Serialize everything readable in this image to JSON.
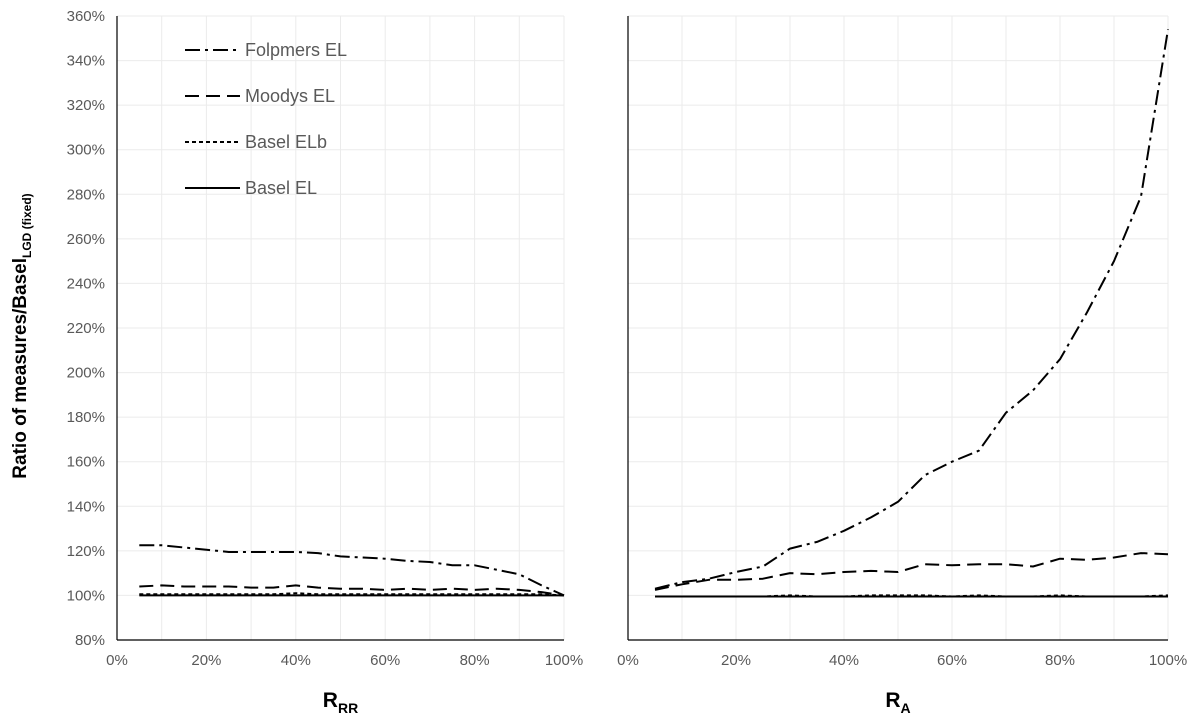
{
  "y_axis_title": {
    "main": "Ratio of measures/Basel",
    "subscript": "LGD (fixed)"
  },
  "chart_data": [
    {
      "type": "line",
      "xlabel": {
        "main": "R",
        "subscript": "RR"
      },
      "xlim": [
        0,
        100
      ],
      "ylim": [
        80,
        360
      ],
      "x_ticks": [
        0,
        20,
        40,
        60,
        80,
        100
      ],
      "x_tick_labels": [
        "0%",
        "20%",
        "40%",
        "60%",
        "80%",
        "100%"
      ],
      "y_ticks": [
        80,
        100,
        120,
        140,
        160,
        180,
        200,
        220,
        240,
        260,
        280,
        300,
        320,
        340,
        360
      ],
      "y_tick_labels": [
        "80%",
        "100%",
        "120%",
        "140%",
        "160%",
        "180%",
        "200%",
        "220%",
        "240%",
        "260%",
        "280%",
        "300%",
        "320%",
        "340%",
        "360%"
      ],
      "grid": true,
      "legend_position": "top-left",
      "x": [
        5,
        10,
        15,
        20,
        25,
        30,
        35,
        40,
        45,
        50,
        55,
        60,
        65,
        70,
        75,
        80,
        85,
        90,
        95,
        100
      ],
      "series": [
        {
          "name": "Folpmers EL",
          "dash": "dash-dot",
          "values": [
            122.5,
            122.5,
            121.5,
            120.5,
            119.5,
            119.5,
            119.5,
            119.5,
            119,
            117.5,
            117,
            116.5,
            115.5,
            115,
            113.5,
            113.5,
            111.5,
            109.5,
            104.5,
            100
          ]
        },
        {
          "name": "Moodys EL",
          "dash": "long-dash",
          "values": [
            104,
            104.5,
            104,
            104,
            104,
            103.5,
            103.5,
            104.5,
            103.5,
            103,
            103,
            102.5,
            103,
            102.5,
            103,
            102.5,
            103,
            102.5,
            101.5,
            100
          ]
        },
        {
          "name": "Basel ELb",
          "dash": "short-dash",
          "values": [
            100.5,
            100.5,
            100.5,
            100.5,
            100.5,
            100.5,
            100.5,
            101,
            100.5,
            100.5,
            100.5,
            100.5,
            100.5,
            100.5,
            100.5,
            100.5,
            100.5,
            100.5,
            100.5,
            100
          ]
        },
        {
          "name": "Basel EL",
          "dash": "solid",
          "values": [
            100,
            100,
            100,
            100,
            100,
            100,
            100,
            100,
            100,
            100,
            100,
            100,
            100,
            100,
            100,
            100,
            100,
            100,
            100,
            100
          ]
        }
      ]
    },
    {
      "type": "line",
      "xlabel": {
        "main": "R",
        "subscript": "A"
      },
      "xlim": [
        0,
        100
      ],
      "ylim": [
        80,
        360
      ],
      "x_ticks": [
        0,
        20,
        40,
        60,
        80,
        100
      ],
      "x_tick_labels": [
        "0%",
        "20%",
        "40%",
        "60%",
        "80%",
        "100%"
      ],
      "grid": true,
      "x": [
        5,
        10,
        15,
        20,
        25,
        30,
        35,
        40,
        45,
        50,
        55,
        60,
        65,
        70,
        75,
        80,
        85,
        90,
        95,
        100
      ],
      "series": [
        {
          "name": "Folpmers EL",
          "dash": "dash-dot",
          "values": [
            103,
            106,
            107.5,
            110.5,
            113,
            121,
            124,
            129,
            135,
            142,
            154,
            160,
            165,
            182,
            192,
            206,
            227,
            250,
            279,
            354
          ]
        },
        {
          "name": "Moodys EL",
          "dash": "long-dash",
          "values": [
            102.5,
            105,
            107,
            107,
            107.5,
            110,
            109.5,
            110.5,
            111,
            110.5,
            114,
            113.5,
            114,
            114,
            113,
            116.5,
            116,
            117,
            119,
            118.5
          ]
        },
        {
          "name": "Basel ELb",
          "dash": "short-dash",
          "values": [
            99.5,
            99.5,
            99.5,
            99.5,
            99.5,
            100,
            99.5,
            99.5,
            100,
            100,
            100,
            99.5,
            100,
            99.5,
            99.5,
            100,
            99.5,
            99.5,
            99.5,
            100
          ]
        },
        {
          "name": "Basel EL",
          "dash": "solid",
          "values": [
            99.5,
            99.5,
            99.5,
            99.5,
            99.5,
            99.5,
            99.5,
            99.5,
            99.5,
            99.5,
            99.5,
            99.5,
            99.5,
            99.5,
            99.5,
            99.5,
            99.5,
            99.5,
            99.5,
            99.5
          ]
        }
      ]
    }
  ]
}
